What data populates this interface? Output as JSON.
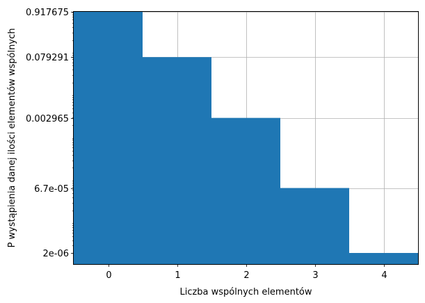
{
  "chart_data": {
    "type": "bar",
    "categories": [
      0,
      1,
      2,
      3,
      4
    ],
    "values": [
      0.917675,
      0.079291,
      0.002965,
      6.7e-05,
      2e-06
    ],
    "xlabel": "Liczba wspólnych elementów",
    "ylabel": "P wystąpienia danej ilości elementów wspólnych",
    "xlim": [
      -0.5,
      4.5
    ],
    "y_scale": "log",
    "ylim": [
      1e-06,
      0.917675
    ],
    "ytick_labels": [
      "0.917675",
      "0.079291",
      "0.002965",
      "6.7e-05",
      "2e-06"
    ],
    "ytick_values": [
      0.917675,
      0.079291,
      0.002965,
      6.7e-05,
      2e-06
    ],
    "xticks": [
      0,
      1,
      2,
      3,
      4
    ],
    "bar_color": "#1f77b4",
    "grid": true,
    "grid_color": "#b0b0b0"
  }
}
